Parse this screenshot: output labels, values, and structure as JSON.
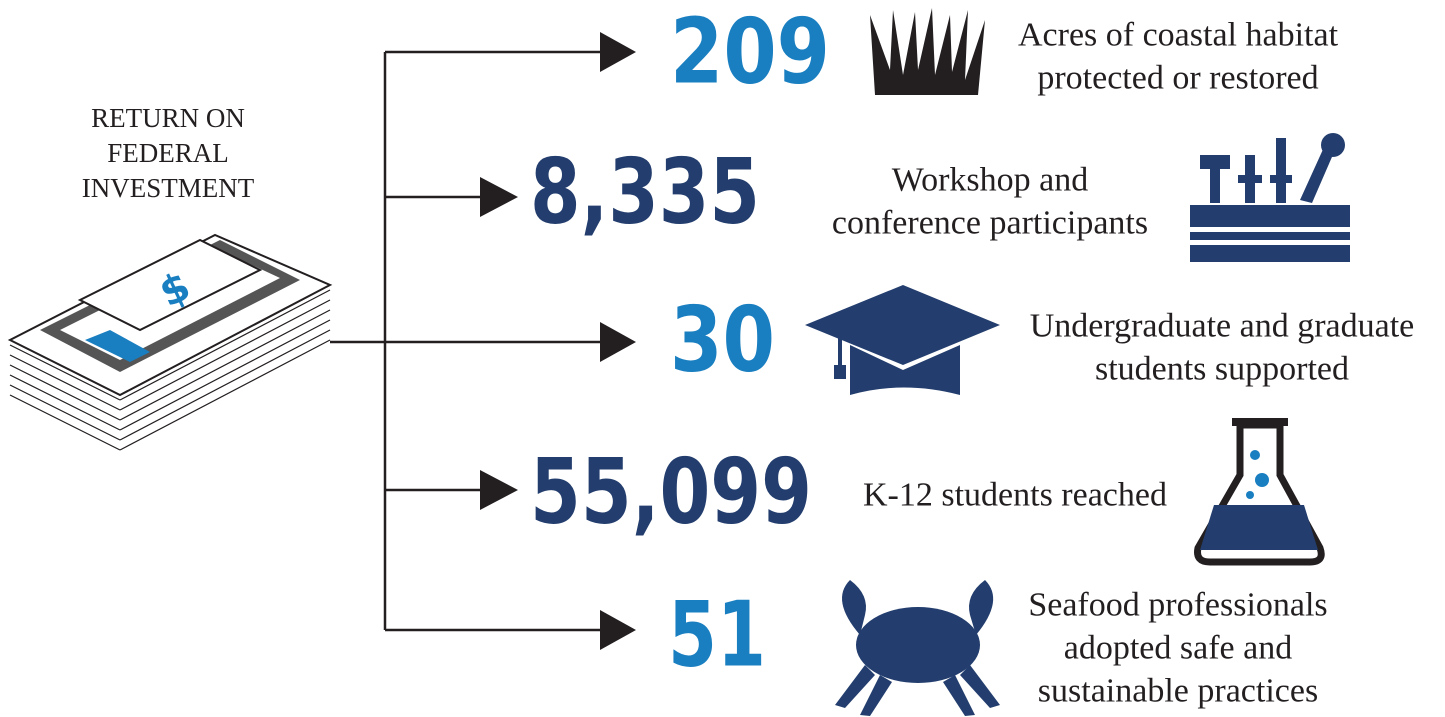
{
  "header": {
    "title_lines": [
      "RETURN ON",
      "FEDERAL",
      "INVESTMENT"
    ],
    "icon_label": "$"
  },
  "items": [
    {
      "value": "209",
      "description_lines": [
        "Acres of coastal habitat",
        "protected or restored"
      ]
    },
    {
      "value": "8,335",
      "description_lines": [
        "Workshop and",
        "conference participants"
      ]
    },
    {
      "value": "30",
      "description_lines": [
        "Undergraduate and graduate",
        "students supported"
      ]
    },
    {
      "value": "55,099",
      "description_lines": [
        "K-12 students reached"
      ]
    },
    {
      "value": "51",
      "description_lines": [
        "Seafood professionals",
        "adopted safe and",
        "sustainable practices"
      ]
    }
  ]
}
